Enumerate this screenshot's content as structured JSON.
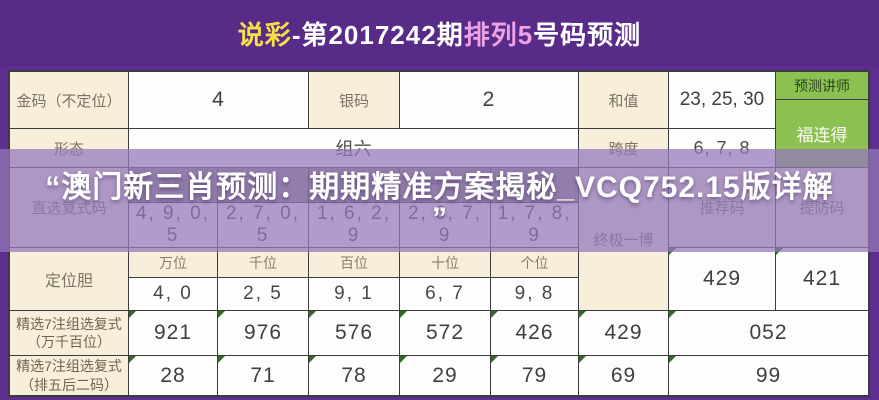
{
  "title": {
    "brand": "说彩",
    "issue": "-第2017242期",
    "game": "排列5",
    "suffix": "号码预测"
  },
  "colors": {
    "background": "#5c2f8f",
    "label_cell": "#f8efdb",
    "value_cell": "#fdfdfd",
    "green_button": "#8cc152",
    "overlay": "rgba(148,120,186,0.74)",
    "title_brand": "#f5e04a",
    "title_game": "#eea2e6"
  },
  "table": {
    "gold": {
      "label": "金码（不定位）",
      "value": "4"
    },
    "silver": {
      "label": "银码",
      "value": "2"
    },
    "sum": {
      "label": "和值",
      "value": "23, 25, 30"
    },
    "shape": {
      "label": "形态",
      "value": "组六"
    },
    "span": {
      "label": "跨度",
      "value": "6, 7, 8"
    },
    "buttons": {
      "lecturer": "预测讲师",
      "brand": "福连得"
    },
    "direct": {
      "label": "直选复式码",
      "headers": [
        "万位",
        "千位",
        "百位",
        "十位",
        "个位"
      ],
      "values": [
        "4, 9, 0, 5",
        "2, 7, 0, 5",
        "1, 6, 2, 9",
        "2, 6, 7, 9",
        "1, 7, 8, 9"
      ]
    },
    "ultimate_label": "终极一博",
    "recommend": {
      "header": "推荐码",
      "value": "429"
    },
    "guard": {
      "header": "提防码",
      "value": "421"
    },
    "position": {
      "label": "定位胆",
      "headers": [
        "万位",
        "千位",
        "百位",
        "十位",
        "个位"
      ],
      "values": [
        "4, 0",
        "2, 5",
        "9, 1",
        "6, 7",
        "9, 8"
      ]
    },
    "picks_group": {
      "label_line1": "精选7注组选复式",
      "label_line2": "（万千百位）",
      "values": [
        "921",
        "976",
        "576",
        "572",
        "426",
        "429",
        "052"
      ]
    },
    "picks_last2": {
      "label_line1": "精选7注组选复式",
      "label_line2": "（排五后二码）",
      "values": [
        "28",
        "71",
        "78",
        "29",
        "79",
        "69",
        "99"
      ]
    }
  },
  "overlay": {
    "line1": "“澳门新三肖预测：期期精准方案揭秘_VCQ752.15版详解",
    "line2": "”"
  }
}
